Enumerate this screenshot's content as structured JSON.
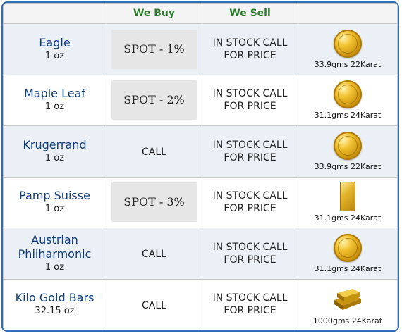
{
  "header": {
    "col_buy": "We Buy",
    "col_sell": "We Sell"
  },
  "rows": [
    {
      "name": "Eagle",
      "weight": "1 oz",
      "buy": "SPOT - 1%",
      "buy_style": "spot",
      "sell_line1": "IN STOCK CALL",
      "sell_line2": "FOR PRICE",
      "spec": "33.9gms 22Karat",
      "icon": "gold-eagle-coin-icon"
    },
    {
      "name": "Maple Leaf",
      "weight": "1 oz",
      "buy": "SPOT - 2%",
      "buy_style": "spot",
      "sell_line1": "IN STOCK CALL",
      "sell_line2": "FOR PRICE",
      "spec": "31.1gms 24Karat",
      "icon": "maple-leaf-coin-icon"
    },
    {
      "name": "Krugerrand",
      "weight": "1 oz",
      "buy": "CALL",
      "buy_style": "call",
      "sell_line1": "IN STOCK CALL",
      "sell_line2": "FOR PRICE",
      "spec": "33.9gms 22Karat",
      "icon": "krugerrand-coin-icon"
    },
    {
      "name": "Pamp Suisse",
      "weight": "1 oz",
      "buy": "SPOT - 3%",
      "buy_style": "spot",
      "sell_line1": "IN STOCK CALL",
      "sell_line2": "FOR PRICE",
      "spec": "31.1gms 24Karat",
      "icon": "pamp-suisse-bar-icon"
    },
    {
      "name": "Austrian Philharmonic",
      "weight": "1 oz",
      "buy": "CALL",
      "buy_style": "call",
      "sell_line1": "IN STOCK CALL",
      "sell_line2": "FOR PRICE",
      "spec": "31.1gms 24Karat",
      "icon": "philharmonic-coin-icon"
    },
    {
      "name": "Kilo Gold Bars",
      "weight": "32.15 oz",
      "buy": "CALL",
      "buy_style": "call",
      "sell_line1": "IN STOCK CALL",
      "sell_line2": "FOR PRICE",
      "spec": "1000gms 24Karat",
      "icon": "kilo-gold-bar-icon"
    }
  ],
  "colors": {
    "frame": "#2f6db5",
    "header_text": "#2b7a2b",
    "product_name": "#0f3d7a",
    "row_alt": "#eaf0f6"
  }
}
